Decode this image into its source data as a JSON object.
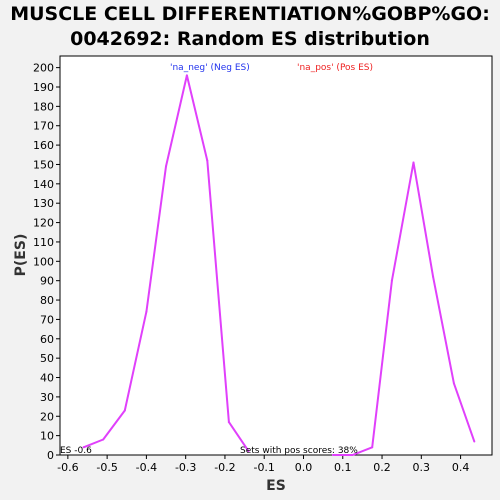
{
  "chart_data": {
    "type": "line",
    "title_line1": "MUSCLE CELL DIFFERENTIATION%GOBP%GO:",
    "title_line2": "0042692: Random ES distribution",
    "xlabel": "ES",
    "ylabel": "P(ES)",
    "xlim": [
      -0.62,
      0.48
    ],
    "ylim": [
      0,
      206
    ],
    "x_ticks": [
      -0.6,
      -0.5,
      -0.4,
      -0.3,
      -0.2,
      -0.1,
      0.0,
      0.1,
      0.2,
      0.3,
      0.4
    ],
    "x_tick_labels": [
      "-0.6",
      "-0.5",
      "-0.4",
      "-0.3",
      "-0.2",
      "-0.1",
      "0.0",
      "0.1",
      "0.2",
      "0.3",
      "0.4"
    ],
    "y_ticks": [
      0,
      10,
      20,
      30,
      40,
      50,
      60,
      70,
      80,
      90,
      100,
      110,
      120,
      130,
      140,
      150,
      160,
      170,
      180,
      190,
      200
    ],
    "y_tick_labels": [
      "0",
      "10",
      "20",
      "30",
      "40",
      "50",
      "60",
      "70",
      "80",
      "90",
      "100",
      "110",
      "120",
      "130",
      "140",
      "150",
      "160",
      "170",
      "180",
      "190",
      "200"
    ],
    "series": [
      {
        "name": "'na_neg' (Neg ES)",
        "color": "#e040fb",
        "x": [
          -0.56,
          -0.51,
          -0.455,
          -0.4,
          -0.35,
          -0.297,
          -0.245,
          -0.19,
          -0.14
        ],
        "y": [
          4,
          8,
          23,
          74,
          149,
          196,
          152,
          17,
          2
        ]
      },
      {
        "name": "'na_pos' (Pos ES)",
        "color": "#e040fb",
        "x": [
          0.075,
          0.125,
          0.175,
          0.225,
          0.28,
          0.33,
          0.383,
          0.435
        ],
        "y": [
          0,
          0,
          4,
          90,
          151,
          92,
          37,
          7
        ]
      }
    ],
    "legend": [
      {
        "label": "'na_neg' (Neg ES)",
        "color": "#2233ee"
      },
      {
        "label": "'na_pos' (Pos ES)",
        "color": "#ee2222"
      }
    ],
    "annotations": {
      "es_marker": "ES -0.6",
      "pos_scores": "Sets with pos scores: 38%"
    },
    "grid": false
  }
}
